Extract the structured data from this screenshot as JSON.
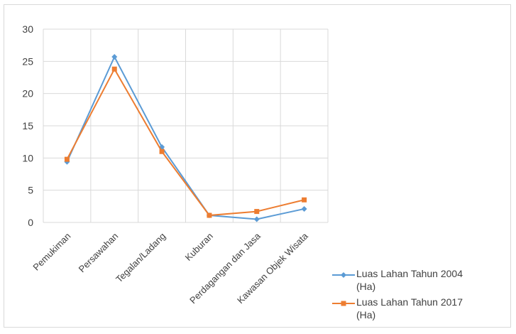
{
  "chart_data": {
    "type": "line",
    "categories": [
      "Pemukiman",
      "Persawahan",
      "Tegalan/Ladang",
      "Kuburan",
      "Perdagangan dan Jasa",
      "Kawasan Objek Wisata"
    ],
    "y_ticks": [
      "0",
      "5",
      "10",
      "15",
      "20",
      "25",
      "30"
    ],
    "ylim": [
      0,
      30
    ],
    "grid": true,
    "legend_position": "bottom-right",
    "series": [
      {
        "name": "Luas Lahan Tahun 2004 (Ha)",
        "name_lines": [
          "Luas Lahan Tahun 2004",
          "(Ha)"
        ],
        "color": "#5b9bd5",
        "marker": "diamond",
        "values": [
          9.4,
          25.7,
          11.7,
          1.1,
          0.5,
          2.1
        ]
      },
      {
        "name": "Luas Lahan Tahun 2017 (Ha)",
        "name_lines": [
          "Luas Lahan Tahun 2017",
          "(Ha)"
        ],
        "color": "#ed7d31",
        "marker": "square",
        "values": [
          9.8,
          23.8,
          11.0,
          1.1,
          1.7,
          3.5
        ]
      }
    ]
  }
}
